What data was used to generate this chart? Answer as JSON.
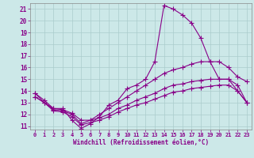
{
  "xlabel": "Windchill (Refroidissement éolien,°C)",
  "bg_color": "#cce8e8",
  "line_color": "#880088",
  "grid_color": "#aacccc",
  "xlim": [
    -0.5,
    23.5
  ],
  "ylim": [
    10.7,
    21.5
  ],
  "xticks": [
    0,
    1,
    2,
    3,
    4,
    5,
    6,
    7,
    8,
    9,
    10,
    11,
    12,
    13,
    14,
    15,
    16,
    17,
    18,
    19,
    20,
    21,
    22,
    23
  ],
  "yticks": [
    11,
    12,
    13,
    14,
    15,
    16,
    17,
    18,
    19,
    20,
    21
  ],
  "series1_x": [
    0,
    1,
    2,
    3,
    4,
    5,
    6,
    7,
    8,
    9,
    10,
    11,
    12,
    13,
    14,
    15,
    16,
    17,
    18,
    19,
    20,
    21,
    22,
    23
  ],
  "series1_y": [
    13.8,
    13.2,
    12.5,
    12.5,
    11.5,
    10.8,
    11.2,
    11.8,
    12.8,
    13.2,
    14.2,
    14.5,
    15.0,
    16.5,
    21.3,
    21.0,
    20.5,
    19.8,
    18.5,
    16.5,
    15.0,
    15.0,
    14.0,
    13.0
  ],
  "series2_x": [
    0,
    1,
    2,
    3,
    4,
    5,
    6,
    7,
    8,
    9,
    10,
    11,
    12,
    13,
    14,
    15,
    16,
    17,
    18,
    19,
    20,
    21,
    22,
    23
  ],
  "series2_y": [
    13.8,
    13.0,
    12.5,
    12.4,
    12.1,
    11.5,
    11.5,
    12.0,
    12.5,
    13.0,
    13.5,
    14.0,
    14.5,
    15.0,
    15.5,
    15.8,
    16.0,
    16.3,
    16.5,
    16.5,
    16.5,
    16.0,
    15.2,
    14.8
  ],
  "series3_x": [
    0,
    1,
    2,
    3,
    4,
    5,
    6,
    7,
    8,
    9,
    10,
    11,
    12,
    13,
    14,
    15,
    16,
    17,
    18,
    19,
    20,
    21,
    22,
    23
  ],
  "series3_y": [
    13.5,
    13.0,
    12.4,
    12.3,
    12.0,
    11.2,
    11.5,
    11.7,
    12.0,
    12.5,
    12.8,
    13.2,
    13.5,
    13.8,
    14.2,
    14.5,
    14.6,
    14.8,
    14.9,
    15.0,
    15.0,
    15.0,
    14.5,
    13.0
  ],
  "series4_x": [
    0,
    1,
    2,
    3,
    4,
    5,
    6,
    7,
    8,
    9,
    10,
    11,
    12,
    13,
    14,
    15,
    16,
    17,
    18,
    19,
    20,
    21,
    22,
    23
  ],
  "series4_y": [
    13.5,
    13.0,
    12.3,
    12.2,
    11.8,
    11.1,
    11.3,
    11.5,
    11.8,
    12.2,
    12.5,
    12.8,
    13.0,
    13.3,
    13.6,
    13.9,
    14.0,
    14.2,
    14.3,
    14.4,
    14.5,
    14.5,
    14.0,
    13.0
  ]
}
